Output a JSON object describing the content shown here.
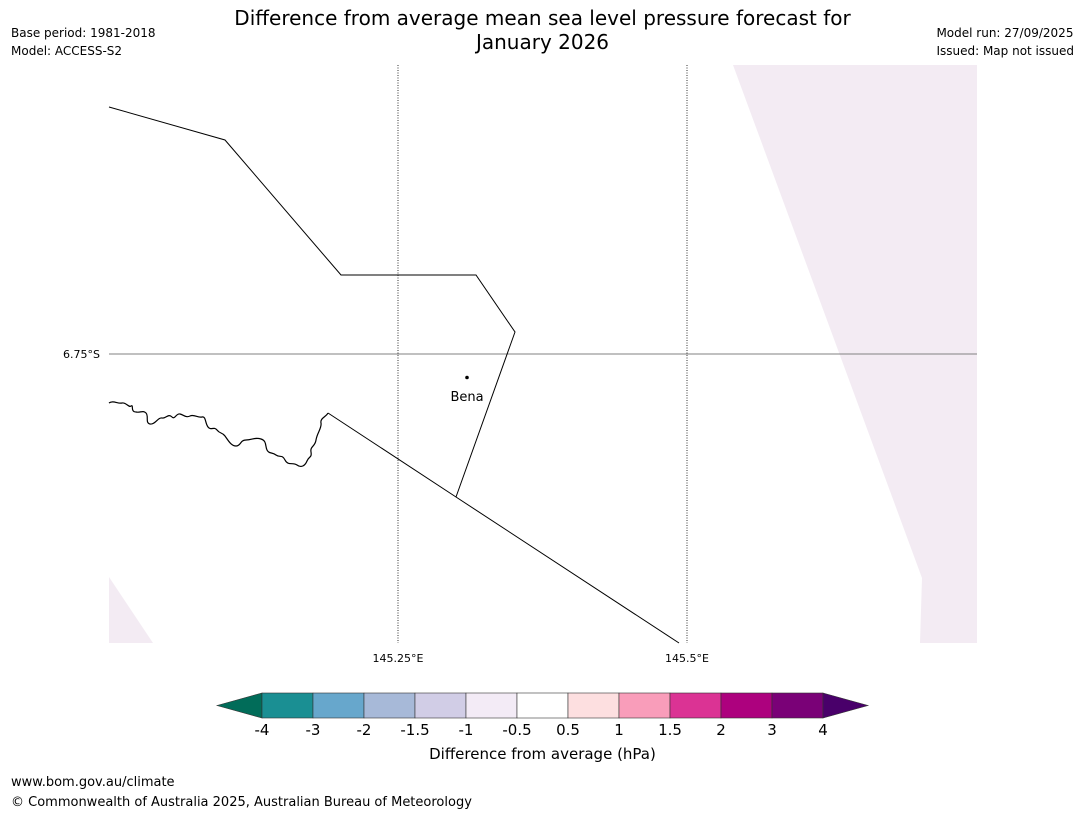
{
  "header": {
    "title_line1": "Difference from average mean sea level pressure forecast for",
    "title_line2": "January 2026",
    "base_period": "Base period: 1981-2018",
    "model": "Model: ACCESS-S2",
    "model_run": "Model run: 27/09/2025",
    "issued": "Issued: Map not issued"
  },
  "map": {
    "lat_label": "6.75°S",
    "lon_labels": [
      "145.25°E",
      "145.5°E"
    ],
    "place": "Bena",
    "colors": {
      "border": "#000000",
      "gridline": "#000000",
      "lat_line": "#808080",
      "shade": "#f3ebf3"
    }
  },
  "colorbar": {
    "label": "Difference from average (hPa)",
    "ticks": [
      "-4",
      "-3",
      "-2",
      "-1.5",
      "-1",
      "-0.5",
      "0.5",
      "1",
      "1.5",
      "2",
      "3",
      "4"
    ],
    "colors": [
      "#1a8f93",
      "#67a7cc",
      "#a7b9d8",
      "#d1cde6",
      "#f3ebf6",
      "#ffffff",
      "#fddfe0",
      "#f99dba",
      "#db3394",
      "#ad017e",
      "#7a0177"
    ],
    "under_color": "#016c59",
    "over_color": "#49006a"
  },
  "footer": {
    "url": "www.bom.gov.au/climate",
    "copyright": "© Commonwealth of Australia 2025, Australian Bureau of Meteorology"
  }
}
